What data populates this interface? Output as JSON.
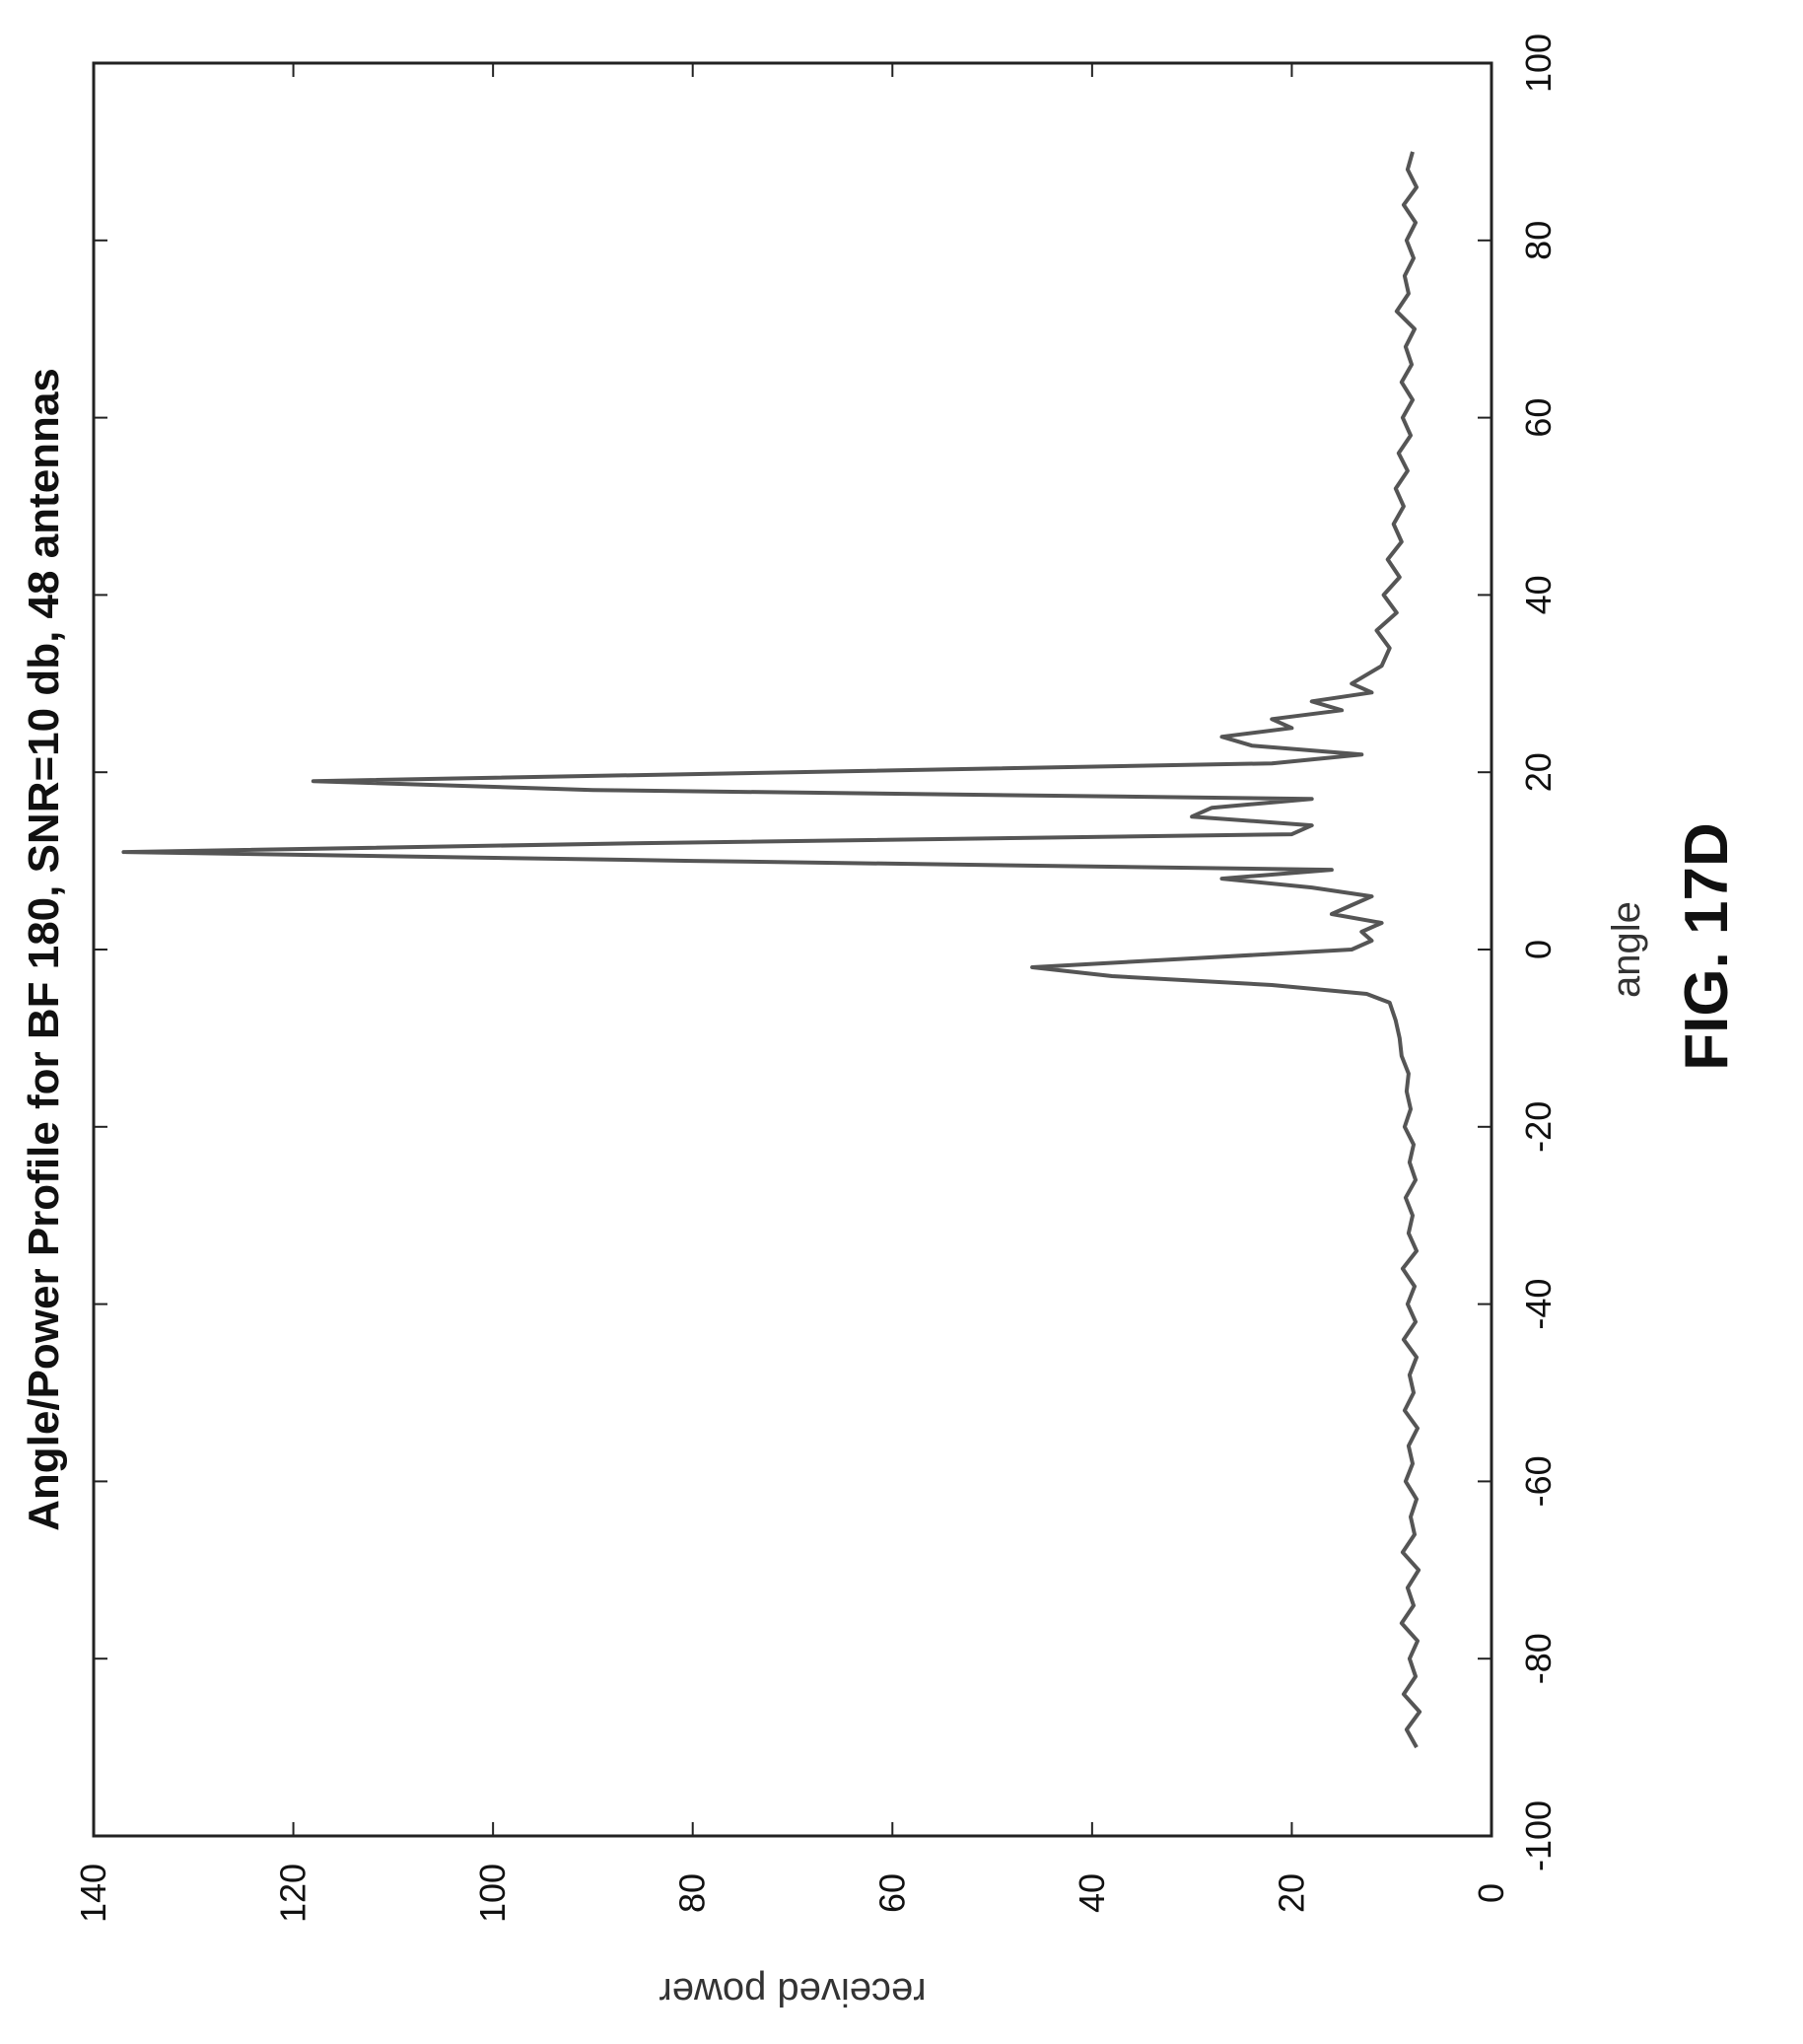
{
  "figure_label": "FIG. 17D",
  "chart_data": {
    "type": "line",
    "title": "Angle/Power Profile for BF 180, SNR=10 db, 48 antennas",
    "xlabel": "angle",
    "ylabel": "received power",
    "xlim": [
      -100,
      100
    ],
    "ylim": [
      0,
      140
    ],
    "xticks": [
      -100,
      -80,
      -60,
      -40,
      -20,
      0,
      20,
      40,
      60,
      80,
      100
    ],
    "yticks": [
      0,
      20,
      40,
      60,
      80,
      100,
      120,
      140
    ],
    "grid": false,
    "orientation": "rotated 90 degrees counter-clockwise",
    "series_color": "#555555",
    "series": [
      {
        "x": [
          -90,
          -88,
          -86,
          -84,
          -82,
          -80,
          -78,
          -76,
          -74,
          -72,
          -70,
          -68,
          -66,
          -64,
          -62,
          -60,
          -58,
          -56,
          -54,
          -52,
          -50,
          -48,
          -46,
          -44,
          -42,
          -40,
          -38,
          -36,
          -34,
          -32,
          -30,
          -28,
          -26,
          -24,
          -22,
          -20,
          -18,
          -16,
          -14,
          -12,
          -10,
          -8,
          -6,
          -5,
          -4,
          -3,
          -2,
          -1,
          0,
          1,
          2,
          3,
          4,
          5,
          6,
          7,
          8,
          9,
          10,
          11,
          12,
          13,
          14,
          15,
          16,
          17,
          18,
          19,
          20,
          21,
          22,
          23,
          24,
          25,
          26,
          27,
          28,
          29,
          30,
          32,
          34,
          36,
          38,
          40,
          42,
          44,
          46,
          48,
          50,
          52,
          54,
          56,
          58,
          60,
          62,
          64,
          66,
          68,
          70,
          72,
          74,
          76,
          78,
          80,
          82,
          84,
          86,
          88,
          90
        ],
        "y": [
          7.5,
          8.5,
          7.2,
          8.8,
          7.6,
          8.2,
          7.4,
          9.0,
          7.8,
          8.4,
          7.3,
          8.9,
          7.7,
          8.1,
          7.5,
          8.6,
          7.9,
          8.3,
          7.4,
          8.7,
          7.8,
          8.2,
          7.5,
          8.8,
          7.6,
          8.4,
          7.7,
          8.9,
          7.5,
          8.3,
          7.9,
          8.6,
          7.6,
          8.2,
          7.8,
          8.7,
          8.1,
          8.5,
          8.3,
          9.0,
          9.2,
          9.6,
          10.2,
          12.5,
          22,
          38,
          46,
          30,
          14,
          12,
          13,
          11,
          16,
          14,
          12,
          18,
          27,
          16,
          80,
          137,
          85,
          20,
          18,
          30,
          28,
          18,
          90,
          118,
          70,
          22,
          13,
          24,
          27,
          20,
          22,
          15,
          18,
          12,
          14,
          11,
          10.2,
          11.5,
          9.5,
          10.8,
          9.2,
          10.4,
          9.0,
          9.8,
          8.8,
          9.6,
          8.4,
          9.3,
          8.1,
          8.9,
          7.9,
          9.0,
          8.0,
          8.6,
          7.7,
          9.5,
          8.3,
          8.7,
          7.8,
          8.5,
          7.6,
          8.8,
          7.5,
          8.4,
          7.9
        ]
      }
    ]
  }
}
